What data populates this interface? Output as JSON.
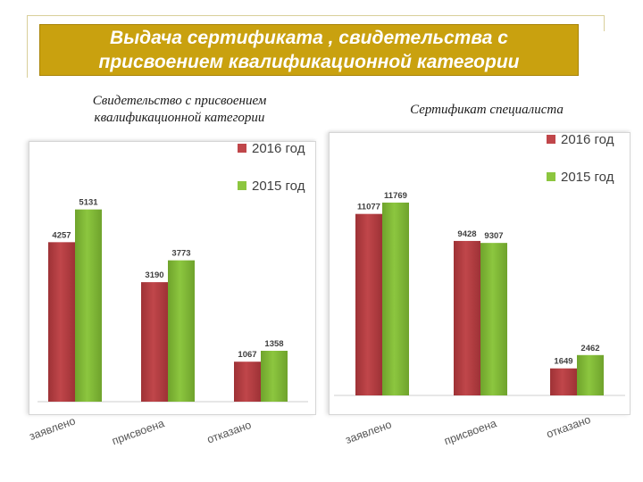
{
  "header": {
    "title_line1": "Выдача сертификата , свидетельства с",
    "title_line2": "присвоением квалификационной категории"
  },
  "chart_data": [
    {
      "type": "bar",
      "subtitle_line1": "Свидетельство с присвоением",
      "subtitle_line2": "квалификационной категории",
      "categories": [
        "заявлено",
        "присвоена",
        "отказано"
      ],
      "series": [
        {
          "name": "2016 год",
          "values": [
            4257,
            3190,
            1067
          ],
          "color": "#c0464a"
        },
        {
          "name": "2015 год",
          "values": [
            5131,
            3773,
            1358
          ],
          "color": "#8cc63f"
        }
      ],
      "ylim": [
        0,
        6600
      ],
      "grid": false,
      "legend": "top-right"
    },
    {
      "type": "bar",
      "subtitle_line1": "Сертификат специалиста",
      "categories": [
        "заявлено",
        "присвоена",
        "отказано"
      ],
      "series": [
        {
          "name": "2016 год",
          "values": [
            11077,
            9428,
            1649
          ],
          "color": "#c0464a"
        },
        {
          "name": "2015 год",
          "values": [
            11769,
            9307,
            2462
          ],
          "color": "#8cc63f"
        }
      ],
      "ylim": [
        0,
        14600
      ],
      "grid": false,
      "legend": "top-right"
    }
  ]
}
